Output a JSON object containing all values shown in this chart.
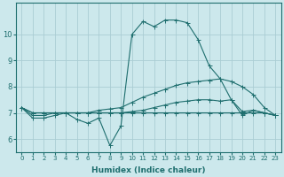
{
  "xlabel": "Humidex (Indice chaleur)",
  "background_color": "#cce8ec",
  "grid_color": "#aacdd4",
  "line_color": "#1e6e6e",
  "x_labels": [
    "0",
    "1",
    "2",
    "3",
    "4",
    "5",
    "6",
    "7",
    "8",
    "9",
    "10",
    "11",
    "12",
    "13",
    "14",
    "15",
    "16",
    "17",
    "18",
    "19",
    "20",
    "21",
    "22",
    "23"
  ],
  "line1_y": [
    7.2,
    6.8,
    6.8,
    6.9,
    7.0,
    6.75,
    6.6,
    6.8,
    5.75,
    6.5,
    10.0,
    10.5,
    10.3,
    10.55,
    10.55,
    10.45,
    9.8,
    8.8,
    8.3,
    7.5,
    6.9,
    7.1,
    7.0,
    6.9
  ],
  "line2_y": [
    7.2,
    6.9,
    6.9,
    7.0,
    7.0,
    7.0,
    7.0,
    7.1,
    7.15,
    7.2,
    7.4,
    7.6,
    7.75,
    7.9,
    8.05,
    8.15,
    8.2,
    8.25,
    8.3,
    8.2,
    8.0,
    7.7,
    7.2,
    6.9
  ],
  "line3_y": [
    7.2,
    7.0,
    7.0,
    7.0,
    7.0,
    7.0,
    7.0,
    7.0,
    7.0,
    7.0,
    7.0,
    7.0,
    7.0,
    7.0,
    7.0,
    7.0,
    7.0,
    7.0,
    7.0,
    7.0,
    7.0,
    7.0,
    7.0,
    6.9
  ],
  "line4_y": [
    7.2,
    7.0,
    7.0,
    7.0,
    7.0,
    7.0,
    7.0,
    7.0,
    7.0,
    7.0,
    7.05,
    7.1,
    7.2,
    7.3,
    7.4,
    7.45,
    7.5,
    7.5,
    7.45,
    7.5,
    7.05,
    7.1,
    7.0,
    6.9
  ],
  "ylim": [
    5.5,
    11.2
  ],
  "yticks": [
    6,
    7,
    8,
    9,
    10
  ],
  "markersize": 2.0
}
